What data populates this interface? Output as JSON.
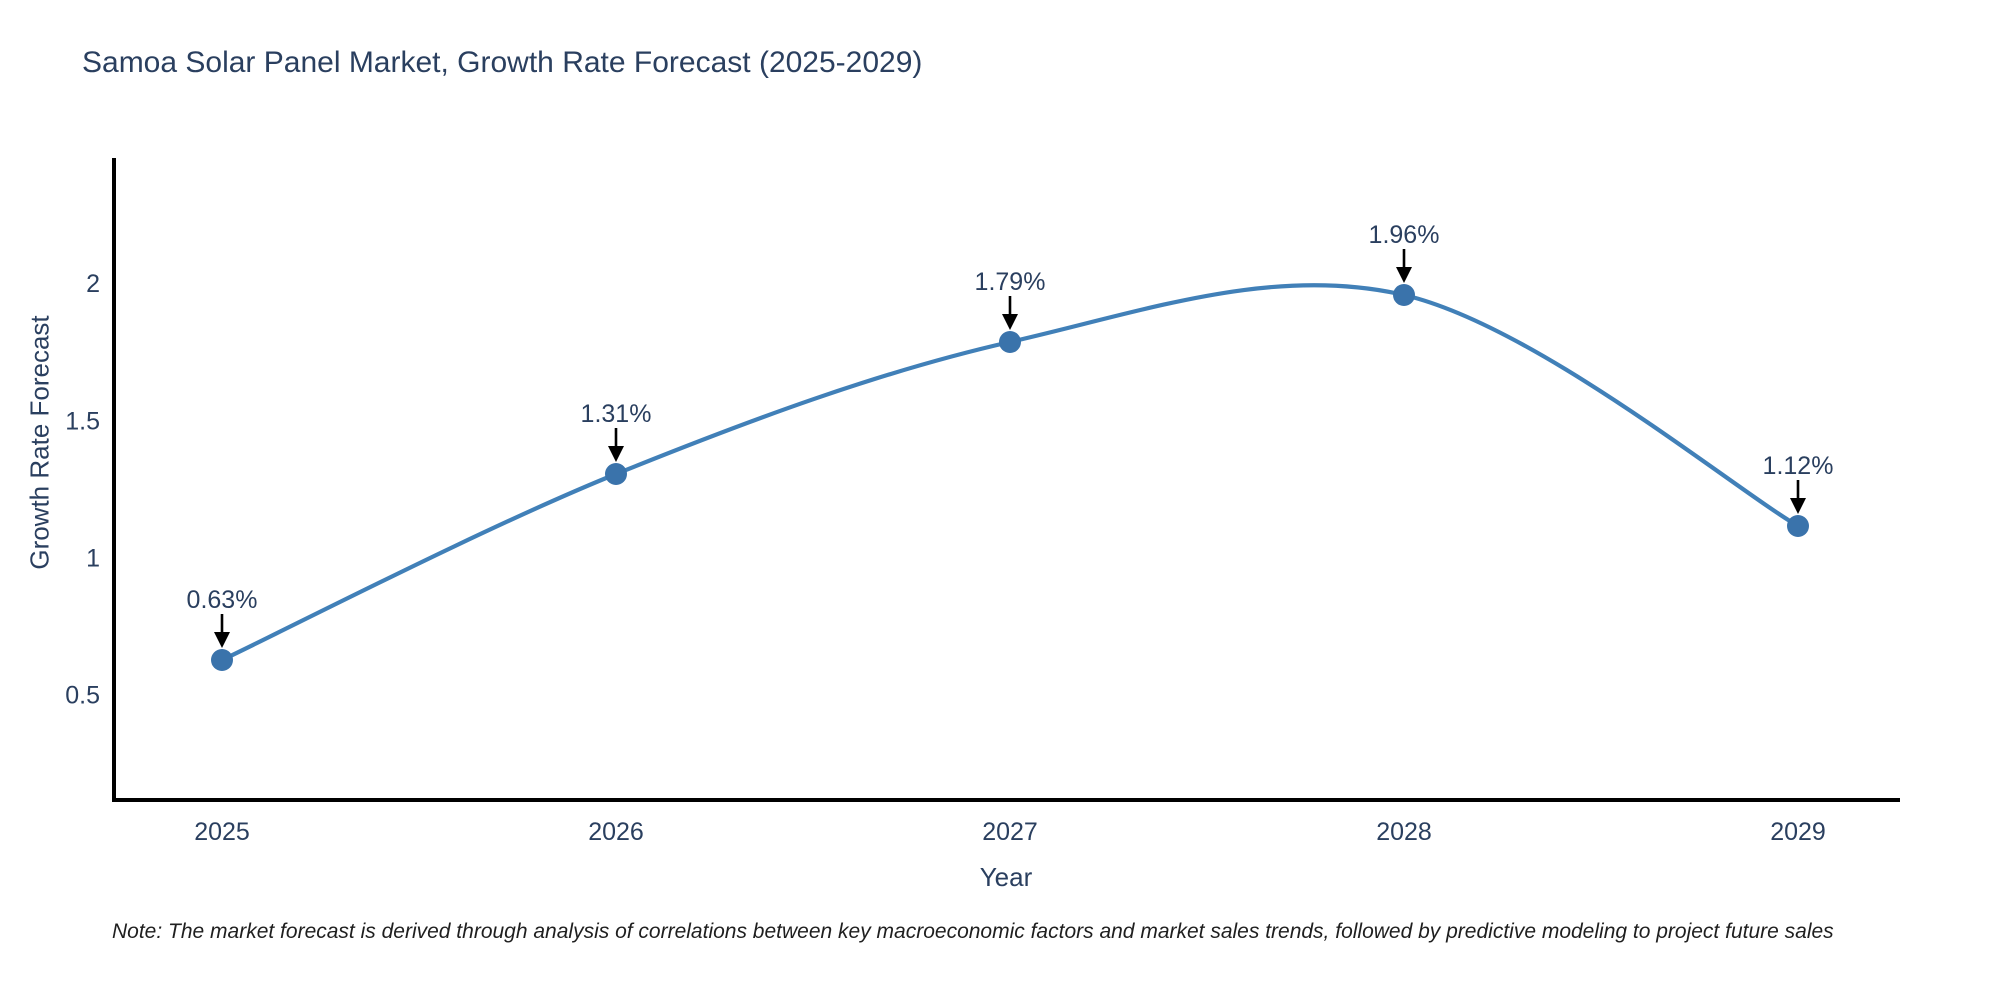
{
  "title": "Samoa Solar Panel Market, Growth Rate Forecast (2025-2029)",
  "note": "Note: The market forecast is derived through analysis of correlations between key macroeconomic factors and market sales trends, followed by predictive modeling to project future sales",
  "chart_data": {
    "type": "line",
    "line_shape": "spline",
    "title": "Samoa Solar Panel Market, Growth Rate Forecast (2025-2029)",
    "xlabel": "Year",
    "ylabel": "Growth Rate Forecast",
    "categories": [
      "2025",
      "2026",
      "2027",
      "2028",
      "2029"
    ],
    "series": [
      {
        "name": "Growth Rate Forecast",
        "values": [
          0.63,
          1.31,
          1.79,
          1.96,
          1.12
        ],
        "point_labels": [
          "0.63%",
          "1.31%",
          "1.79%",
          "1.96%",
          "1.12%"
        ]
      }
    ],
    "yticks": [
      "0.5",
      "1",
      "1.5",
      "2"
    ],
    "ytick_values": [
      0.5,
      1.0,
      1.5,
      2.0
    ],
    "ylim": [
      0.12,
      2.46
    ],
    "grid": false,
    "legend": false,
    "annotations_style": "value labels with downward black arrows above each point",
    "colors": {
      "line": "#4180b8",
      "marker": "#3a73ab",
      "text": "#2a3f5f",
      "axis": "#000000",
      "arrow": "#000000",
      "background": "#ffffff"
    }
  }
}
